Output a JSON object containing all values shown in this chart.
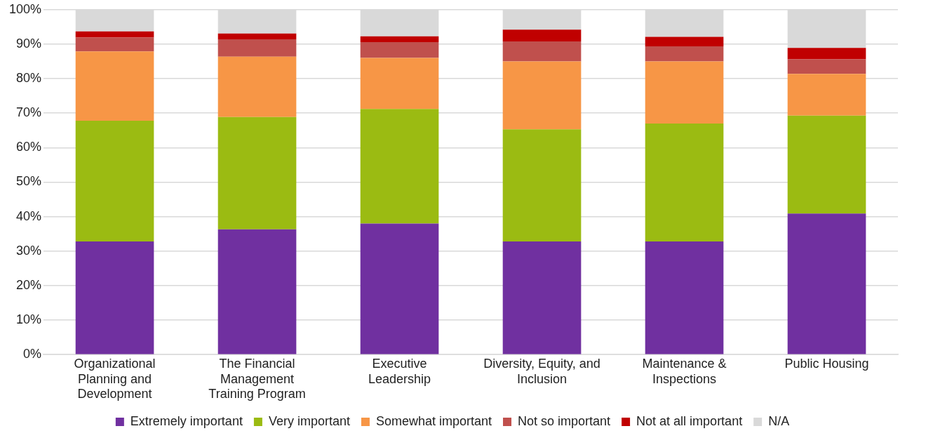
{
  "chart_data": {
    "type": "bar",
    "stacked": true,
    "categories": [
      "Organizational\nPlanning and\nDevelopment",
      "The Financial\nManagement\nTraining Program",
      "Executive\nLeadership",
      "Diversity, Equity, and\nInclusion",
      "Maintenance &\nInspections",
      "Public Housing"
    ],
    "series": [
      {
        "name": "Extremely important",
        "color": "#7030a0",
        "values": [
          32.8,
          36.3,
          38.0,
          32.8,
          32.8,
          40.9
        ]
      },
      {
        "name": "Very important",
        "color": "#9bbb12",
        "values": [
          35.0,
          32.6,
          33.2,
          32.5,
          34.2,
          28.4
        ]
      },
      {
        "name": "Somewhat important",
        "color": "#f79646",
        "values": [
          20.1,
          17.5,
          14.8,
          19.7,
          18.0,
          12.1
        ]
      },
      {
        "name": "Not so important",
        "color": "#c0504d",
        "values": [
          4.0,
          5.0,
          4.6,
          5.8,
          4.4,
          4.2
        ]
      },
      {
        "name": "Not at all important",
        "color": "#c00000",
        "values": [
          1.8,
          1.7,
          1.7,
          3.4,
          2.7,
          3.3
        ]
      },
      {
        "name": "N/A",
        "color": "#d9d9d9",
        "values": [
          6.3,
          6.9,
          7.7,
          5.8,
          7.9,
          11.1
        ]
      }
    ],
    "ylim": [
      0,
      100
    ],
    "yticks": [
      {
        "value": 0,
        "label": "0%"
      },
      {
        "value": 10,
        "label": "10%"
      },
      {
        "value": 20,
        "label": "20%"
      },
      {
        "value": 30,
        "label": "30%"
      },
      {
        "value": 40,
        "label": "40%"
      },
      {
        "value": 50,
        "label": "50%"
      },
      {
        "value": 60,
        "label": "60%"
      },
      {
        "value": 70,
        "label": "70%"
      },
      {
        "value": 80,
        "label": "80%"
      },
      {
        "value": 90,
        "label": "90%"
      },
      {
        "value": 100,
        "label": "100%"
      }
    ],
    "grid": "y",
    "legend": "bottom"
  }
}
